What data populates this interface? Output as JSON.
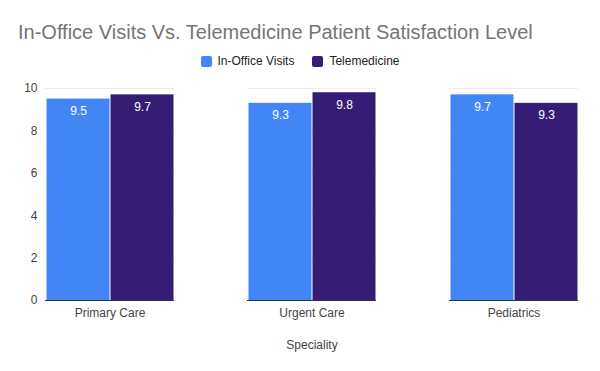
{
  "chart_data": {
    "type": "bar",
    "title": "In-Office Visits Vs. Telemedicine Patient Satisfaction Level",
    "xlabel": "Speciality",
    "categories": [
      "Primary Care",
      "Urgent Care",
      "Pediatrics"
    ],
    "series": [
      {
        "name": "In-Office Visits",
        "color": "#4285f4",
        "values": [
          9.5,
          9.3,
          9.7
        ]
      },
      {
        "name": "Telemedicine",
        "color": "#351c75",
        "values": [
          9.7,
          9.8,
          9.3
        ]
      }
    ],
    "ylim": [
      0,
      10
    ],
    "yticks": [
      0,
      2,
      4,
      6,
      8,
      10
    ],
    "grid": true,
    "legend": "top",
    "data_labels": true
  }
}
